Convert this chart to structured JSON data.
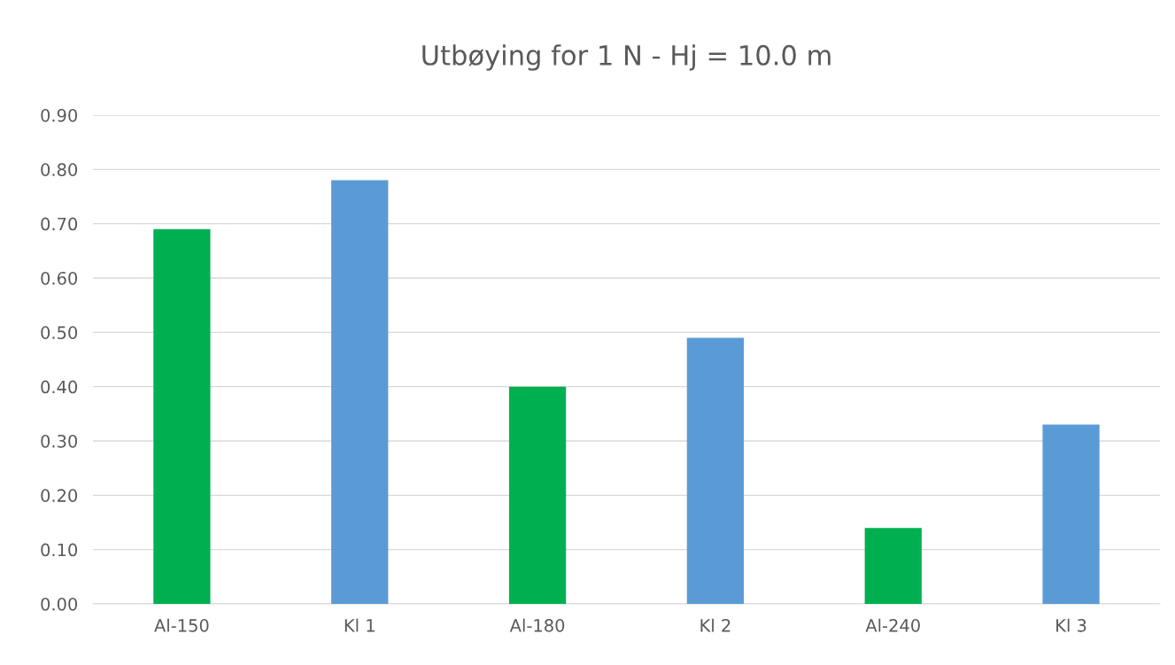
{
  "chart_data": {
    "type": "bar",
    "title": "Utbøying for 1 N - Hj = 10.0 m",
    "categories": [
      "Al-150",
      "Kl 1",
      "Al-180",
      "Kl 2",
      "Al-240",
      "Kl 3"
    ],
    "values": [
      0.69,
      0.78,
      0.4,
      0.49,
      0.14,
      0.33
    ],
    "colors": [
      "#00b050",
      "#5b9bd5",
      "#00b050",
      "#5b9bd5",
      "#00b050",
      "#5b9bd5"
    ],
    "ylim": [
      0,
      0.9
    ],
    "yticks": [
      {
        "value": 0,
        "label": "0.00"
      },
      {
        "value": 0.1,
        "label": "0.10"
      },
      {
        "value": 0.2,
        "label": "0.20"
      },
      {
        "value": 0.3,
        "label": "0.30"
      },
      {
        "value": 0.4,
        "label": "0.40"
      },
      {
        "value": 0.5,
        "label": "0.50"
      },
      {
        "value": 0.6,
        "label": "0.60"
      },
      {
        "value": 0.7,
        "label": "0.70"
      },
      {
        "value": 0.8,
        "label": "0.80"
      },
      {
        "value": 0.9,
        "label": "0.90"
      }
    ],
    "grid": "y",
    "legend": false
  }
}
